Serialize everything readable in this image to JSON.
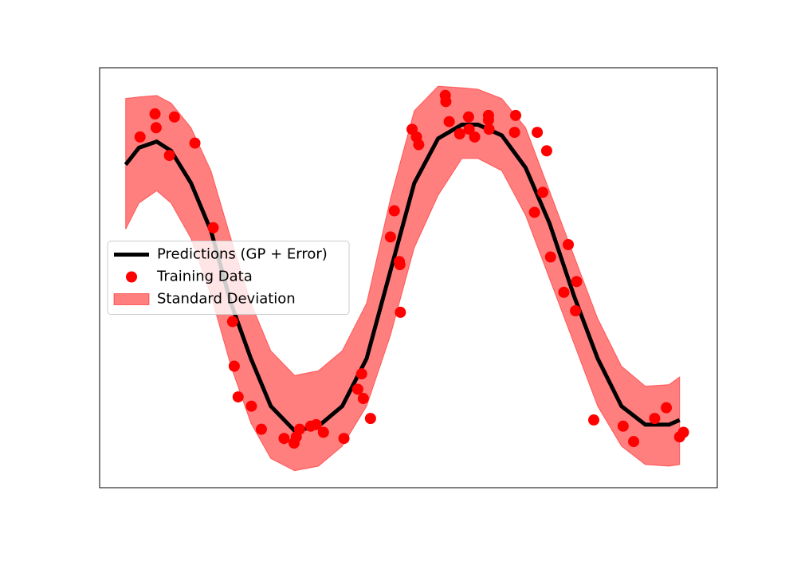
{
  "chart_data": {
    "type": "line",
    "xlim": [
      -0.47,
      10.68
    ],
    "ylim": [
      -1.37,
      1.36
    ],
    "legend": "center left",
    "series": [
      {
        "type": "line",
        "name": "Predictions (GP + Error)",
        "color": "#000000",
        "x": [
          0,
          0.24,
          0.56,
          0.82,
          1.18,
          1.54,
          1.9,
          2.26,
          2.62,
          3.05,
          3.48,
          3.91,
          4.35,
          4.78,
          5.21,
          5.64,
          6.07,
          6.36,
          6.79,
          7.22,
          7.65,
          8.09,
          8.52,
          8.95,
          9.38,
          9.81,
          10
        ],
        "values": [
          0.73,
          0.84,
          0.88,
          0.82,
          0.61,
          0.3,
          -0.17,
          -0.53,
          -0.84,
          -1.0,
          -0.97,
          -0.84,
          -0.53,
          0.04,
          0.61,
          0.9,
          0.99,
          0.99,
          0.92,
          0.71,
          0.35,
          -0.12,
          -0.53,
          -0.84,
          -0.96,
          -0.96,
          -0.93
        ]
      },
      {
        "type": "scatter",
        "name": "Training Data",
        "color": "#ff0000",
        "x": [
          0.26,
          0.53,
          0.55,
          0.88,
          0.79,
          1.25,
          1.58,
          1.93,
          1.96,
          2.03,
          2.27,
          2.45,
          2.86,
          3.04,
          3.08,
          3.14,
          3.34,
          3.44,
          3.57,
          3.94,
          4.19,
          4.26,
          4.29,
          4.42,
          4.78,
          4.85,
          4.94,
          4.95,
          4.96,
          5.17,
          5.25,
          5.29,
          5.77,
          5.78,
          5.84,
          6.03,
          6.19,
          6.2,
          6.3,
          6.55,
          6.56,
          6.55,
          7.04,
          7.02,
          7.43,
          7.6,
          7.53,
          7.38,
          7.67,
          7.99,
          8.14,
          7.91,
          8.12,
          8.45,
          8.98,
          9.17,
          9.55,
          9.76,
          10.0,
          10.07
        ],
        "values": [
          0.91,
          1.06,
          0.97,
          1.04,
          0.79,
          0.87,
          0.32,
          -0.29,
          -0.58,
          -0.78,
          -0.84,
          -0.99,
          -1.05,
          -1.08,
          -1.04,
          -0.99,
          -0.97,
          -0.96,
          -1.01,
          -1.05,
          -0.73,
          -0.63,
          -0.79,
          -0.92,
          0.26,
          0.43,
          0.1,
          0.08,
          -0.23,
          0.96,
          0.91,
          0.86,
          1.18,
          1.14,
          1.01,
          0.93,
          1.04,
          0.96,
          0.91,
          1.05,
          0.96,
          1.02,
          1.05,
          0.94,
          0.94,
          0.82,
          0.55,
          0.42,
          0.13,
          0.21,
          -0.03,
          -0.1,
          -0.22,
          -0.93,
          -0.97,
          -1.07,
          -0.92,
          -0.85,
          -1.04,
          -1.01
        ]
      },
      {
        "type": "band",
        "name": "Standard Deviation",
        "color": "#ff0000",
        "x": [
          0,
          0.24,
          0.56,
          0.82,
          1.18,
          1.54,
          1.9,
          2.26,
          2.62,
          3.05,
          3.48,
          3.91,
          4.35,
          4.78,
          5.21,
          5.64,
          6.07,
          6.36,
          6.79,
          7.22,
          7.65,
          8.09,
          8.52,
          8.95,
          9.38,
          9.81,
          10
        ],
        "upper": [
          1.16,
          1.17,
          1.18,
          1.13,
          0.97,
          0.69,
          0.25,
          -0.17,
          -0.48,
          -0.64,
          -0.61,
          -0.48,
          -0.17,
          0.51,
          1.08,
          1.24,
          1.23,
          1.22,
          1.16,
          0.97,
          0.56,
          0.14,
          -0.27,
          -0.58,
          -0.71,
          -0.7,
          -0.65
        ],
        "lower": [
          0.31,
          0.48,
          0.56,
          0.48,
          0.25,
          -0.12,
          -0.58,
          -0.95,
          -1.18,
          -1.26,
          -1.23,
          -1.1,
          -0.84,
          -0.38,
          0.19,
          0.53,
          0.77,
          0.77,
          0.69,
          0.4,
          -0.01,
          -0.43,
          -0.84,
          -1.1,
          -1.22,
          -1.23,
          -1.22
        ]
      }
    ]
  }
}
